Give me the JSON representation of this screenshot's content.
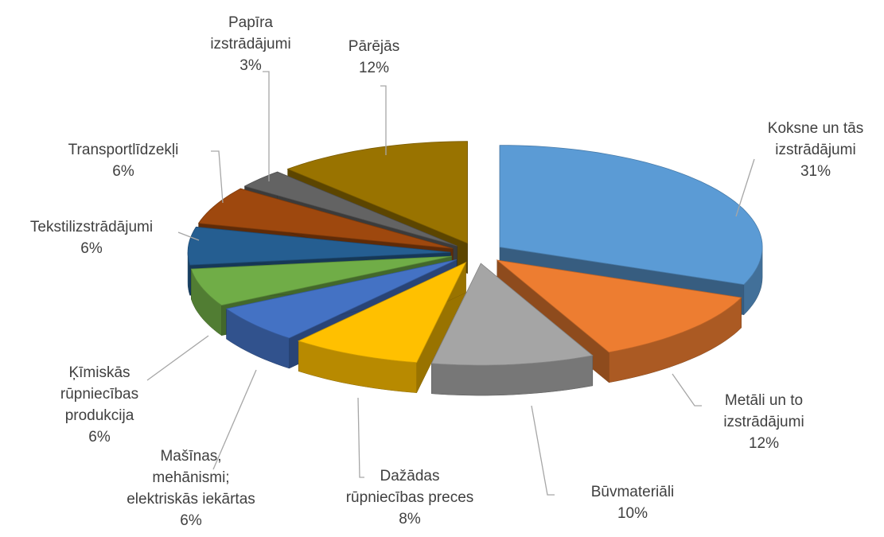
{
  "chart_data": {
    "type": "pie3d",
    "categories": [
      "Koksne un tās\nizstrādājumi",
      "Metāli un to\nizstrādājumi",
      "Būvmateriāli",
      "Dažādas\nrūpniecības preces",
      "Mašīnas,\nmehānismi;\nelektriskās iekārtas",
      "Ķīmiskās\nrūpniecības\nprodukcija",
      "Tekstilizstrādājumi",
      "Transportlīdzekļi",
      "Papīra\nizstrādājumi",
      "Pārējās"
    ],
    "values": [
      31,
      12,
      10,
      8,
      6,
      6,
      6,
      6,
      3,
      12
    ],
    "value_labels": [
      "31%",
      "12%",
      "10%",
      "8%",
      "6%",
      "6%",
      "6%",
      "6%",
      "3%",
      "12%"
    ],
    "colors": [
      "#5b9bd5",
      "#ed7d31",
      "#a5a5a5",
      "#ffc000",
      "#4472c4",
      "#70ad47",
      "#255e91",
      "#9e480e",
      "#636363",
      "#997300"
    ]
  }
}
